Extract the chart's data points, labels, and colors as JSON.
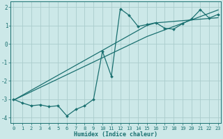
{
  "xlabel": "Humidex (Indice chaleur)",
  "bg_color": "#cce8e8",
  "grid_color": "#aacccc",
  "line_color": "#1a7070",
  "x": [
    0,
    1,
    2,
    3,
    4,
    5,
    6,
    7,
    8,
    9,
    10,
    11,
    12,
    13,
    14,
    15,
    16,
    17,
    18,
    19,
    20,
    21,
    22,
    23
  ],
  "y_data": [
    -3.0,
    -3.2,
    -3.35,
    -3.3,
    -3.4,
    -3.35,
    -3.9,
    -3.55,
    -3.35,
    -3.0,
    -0.4,
    -1.75,
    1.9,
    1.55,
    0.95,
    1.05,
    1.15,
    0.85,
    0.8,
    1.1,
    1.35,
    1.85,
    1.4,
    1.6
  ],
  "y_reg1": [
    -3.05,
    -2.78,
    -2.51,
    -2.24,
    -1.97,
    -1.7,
    -1.43,
    -1.16,
    -0.89,
    -0.62,
    -0.35,
    -0.08,
    0.19,
    0.46,
    0.73,
    1.0,
    1.14,
    1.18,
    1.22,
    1.26,
    1.3,
    1.34,
    1.38,
    1.42
  ],
  "y_reg2": [
    -3.05,
    -2.82,
    -2.59,
    -2.36,
    -2.13,
    -1.9,
    -1.67,
    -1.44,
    -1.21,
    -0.98,
    -0.75,
    -0.52,
    -0.29,
    -0.06,
    0.17,
    0.4,
    0.58,
    0.76,
    0.94,
    1.12,
    1.3,
    1.48,
    1.66,
    1.84
  ],
  "xlim": [
    0,
    23
  ],
  "ylim": [
    -4.3,
    2.3
  ],
  "yticks": [
    -4,
    -3,
    -2,
    -1,
    0,
    1,
    2
  ],
  "xtick_labels": [
    "0",
    "1",
    "2",
    "3",
    "4",
    "5",
    "6",
    "7",
    "8",
    "9",
    "10",
    "11",
    "12",
    "13",
    "14",
    "15",
    "16",
    "17",
    "18",
    "19",
    "20",
    "21",
    "22",
    "23"
  ]
}
